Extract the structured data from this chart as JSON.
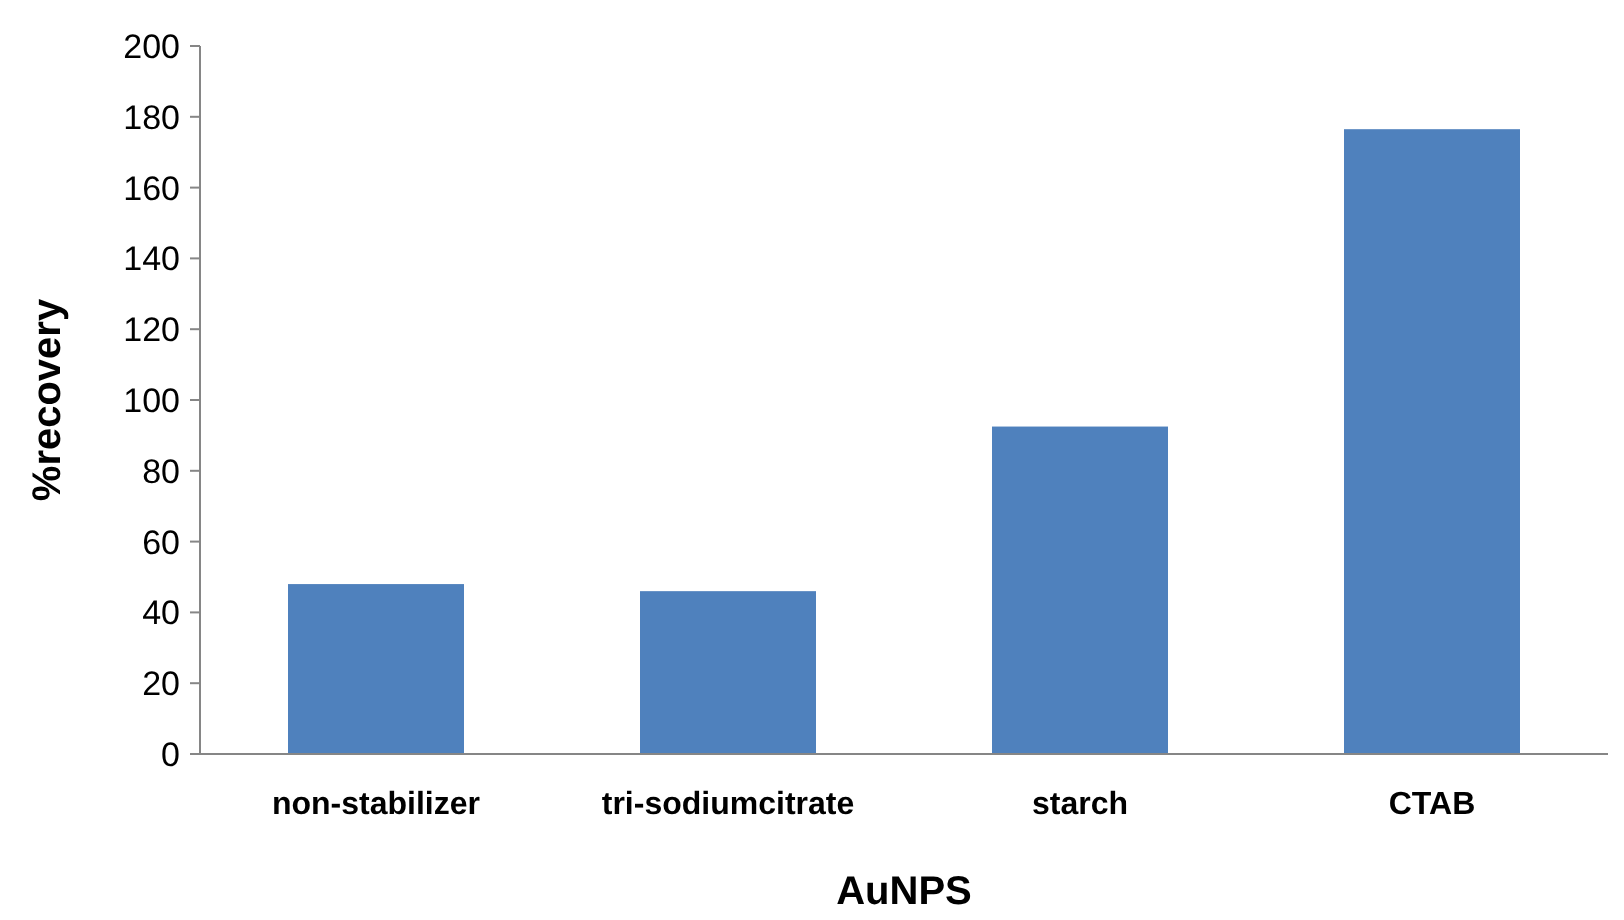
{
  "chart_data": {
    "type": "bar",
    "xlabel": "AuNPS",
    "ylabel": "%recovery",
    "categories": [
      "non-stabilizer",
      "tri-sodiumcitrate",
      "starch",
      "CTAB"
    ],
    "values": [
      48,
      46,
      92.5,
      176.5
    ],
    "color": "#4f81bd",
    "ylim": [
      0,
      200
    ],
    "yticks": [
      0,
      20,
      40,
      60,
      80,
      100,
      120,
      140,
      160,
      180,
      200
    ],
    "grid": false
  }
}
